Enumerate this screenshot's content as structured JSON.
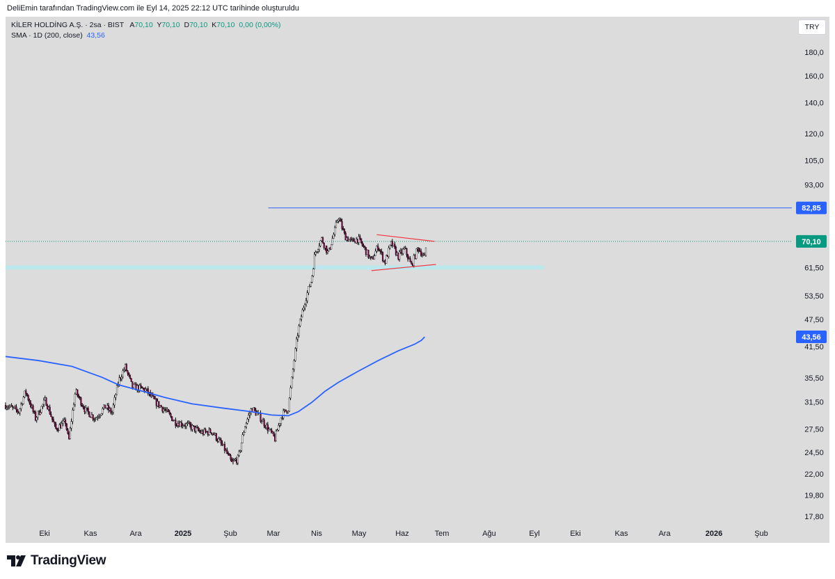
{
  "attribution": "DeliEmin tarafından TradingView.com ile Eyl 14, 2025 22:12 UTC tarihinde oluşturuldu",
  "legend": {
    "symbol": "KİLER HOLDİNG A.Ş. · 2sa · BIST",
    "ohlc_label_o": "A",
    "ohlc_value_o": "70,10",
    "ohlc_label_h": "Y",
    "ohlc_value_h": "70,10",
    "ohlc_label_l": "D",
    "ohlc_value_l": "70,10",
    "ohlc_label_c": "K",
    "ohlc_value_c": "70,10",
    "change": "0,00 (0,00%)",
    "sma_label": "SMA · 1D (200, close)",
    "sma_value": "43,56"
  },
  "currency_button": "TRY",
  "logo_text": "TradingView",
  "colors": {
    "background": "#dcdcdc",
    "candle_up": "#ffffff",
    "candle_down": "#880e4f",
    "wick": "#000000",
    "sma": "#2962ff",
    "resistance": "#2962ff",
    "triangle": "#f23645",
    "support_band": "#b2ebf2",
    "last_price": "#089981"
  },
  "chart_data": {
    "type": "candlestick",
    "scale": "log",
    "x_ticks": [
      {
        "label": "Eki",
        "bold": false
      },
      {
        "label": "Kas",
        "bold": false
      },
      {
        "label": "Ara",
        "bold": false
      },
      {
        "label": "2025",
        "bold": true
      },
      {
        "label": "Şub",
        "bold": false
      },
      {
        "label": "Mar",
        "bold": false
      },
      {
        "label": "Nis",
        "bold": false
      },
      {
        "label": "May",
        "bold": false
      },
      {
        "label": "Haz",
        "bold": false
      },
      {
        "label": "Tem",
        "bold": false
      },
      {
        "label": "Ağu",
        "bold": false
      },
      {
        "label": "Eyl",
        "bold": false
      },
      {
        "label": "Eki",
        "bold": false
      },
      {
        "label": "Kas",
        "bold": false
      },
      {
        "label": "Ara",
        "bold": false
      },
      {
        "label": "2026",
        "bold": true
      },
      {
        "label": "Şub",
        "bold": false
      }
    ],
    "y_ticks": [
      {
        "label": "180,0",
        "value": 180
      },
      {
        "label": "160,0",
        "value": 160
      },
      {
        "label": "140,0",
        "value": 140
      },
      {
        "label": "120,0",
        "value": 120
      },
      {
        "label": "105,0",
        "value": 105
      },
      {
        "label": "93,00",
        "value": 93
      },
      {
        "label": "61,50",
        "value": 61.5
      },
      {
        "label": "53,50",
        "value": 53.5
      },
      {
        "label": "47,50",
        "value": 47.5
      },
      {
        "label": "41,50",
        "value": 41.5
      },
      {
        "label": "35,50",
        "value": 35.5
      },
      {
        "label": "31,50",
        "value": 31.5
      },
      {
        "label": "27,50",
        "value": 27.5
      },
      {
        "label": "24,50",
        "value": 24.5
      },
      {
        "label": "22,00",
        "value": 22
      },
      {
        "label": "19,80",
        "value": 19.8
      },
      {
        "label": "17,80",
        "value": 17.8
      }
    ],
    "price_labels": [
      {
        "label": "82,85",
        "value": 82.85,
        "color": "#2962ff",
        "kind": "resistance"
      },
      {
        "label": "70,10",
        "value": 70.1,
        "color": "#089981",
        "kind": "last"
      },
      {
        "label": "43,56",
        "value": 43.56,
        "color": "#2962ff",
        "kind": "sma"
      }
    ],
    "price_path": [
      [
        0,
        31.0
      ],
      [
        2.0,
        30.0
      ],
      [
        3.0,
        33.2
      ],
      [
        4.5,
        29.0
      ],
      [
        6.0,
        31.8
      ],
      [
        7.5,
        27.5
      ],
      [
        9.0,
        28.5
      ],
      [
        9.5,
        25.8
      ],
      [
        10.5,
        33.2
      ],
      [
        12.0,
        30.2
      ],
      [
        13.5,
        29.0
      ],
      [
        15.0,
        30.8
      ],
      [
        16.0,
        29.8
      ],
      [
        17.0,
        35.0
      ],
      [
        18.0,
        37.5
      ],
      [
        19.0,
        34.0
      ],
      [
        21.0,
        33.5
      ],
      [
        22.5,
        31.5
      ],
      [
        24.0,
        30.2
      ],
      [
        25.5,
        28.5
      ],
      [
        27.5,
        28.0
      ],
      [
        29.5,
        27.0
      ],
      [
        31.0,
        27.2
      ],
      [
        33.0,
        24.8
      ],
      [
        34.0,
        23.2
      ],
      [
        35.0,
        23.8
      ],
      [
        36.0,
        28.0
      ],
      [
        37.0,
        30.5
      ],
      [
        38.0,
        29.5
      ],
      [
        39.5,
        27.5
      ],
      [
        40.5,
        26.2
      ],
      [
        41.5,
        29.5
      ],
      [
        42.5,
        30.5
      ],
      [
        43.0,
        35.0
      ],
      [
        44.0,
        45.0
      ],
      [
        45.0,
        52.0
      ],
      [
        46.0,
        58.0
      ],
      [
        46.5,
        66.0
      ],
      [
        47.5,
        71.0
      ],
      [
        48.5,
        66.0
      ],
      [
        49.5,
        74.0
      ],
      [
        50.0,
        79.5
      ],
      [
        51.0,
        72.0
      ],
      [
        52.0,
        70.0
      ],
      [
        53.0,
        71.0
      ],
      [
        54.0,
        67.5
      ],
      [
        55.0,
        63.5
      ],
      [
        56.0,
        68.5
      ],
      [
        57.0,
        63.0
      ],
      [
        58.0,
        69.5
      ],
      [
        59.0,
        65.0
      ],
      [
        60.0,
        67.5
      ],
      [
        61.0,
        62.0
      ],
      [
        62.0,
        68.0
      ],
      [
        63.0,
        64.5
      ],
      [
        63.3,
        70.1
      ]
    ],
    "sma_series": [
      [
        0,
        39.5
      ],
      [
        5.0,
        38.7
      ],
      [
        10.0,
        37.6
      ],
      [
        14.5,
        35.6
      ],
      [
        17.0,
        34.3
      ],
      [
        20.0,
        33.4
      ],
      [
        24.0,
        32.2
      ],
      [
        28.0,
        31.2
      ],
      [
        33.0,
        30.5
      ],
      [
        37.0,
        30.0
      ],
      [
        40.0,
        29.5
      ],
      [
        42.5,
        29.4
      ],
      [
        44.0,
        30.0
      ],
      [
        46.0,
        31.4
      ],
      [
        48.0,
        33.2
      ],
      [
        50.0,
        34.7
      ],
      [
        53.0,
        36.7
      ],
      [
        56.0,
        38.7
      ],
      [
        59.0,
        40.6
      ],
      [
        61.5,
        42.0
      ],
      [
        62.5,
        42.8
      ],
      [
        63.0,
        43.56
      ]
    ],
    "annotations": {
      "resistance_line": {
        "value": 82.85,
        "x_start": 39.5,
        "x_end": "right_edge"
      },
      "last_price_line": {
        "value": 70.1,
        "style": "dotted"
      },
      "support_zone": {
        "from": 60.9,
        "to": 62.2,
        "x_start": 0,
        "x_end": 81.0
      },
      "triangle": {
        "upper": {
          "x1": 55.8,
          "y1": 72.5,
          "x2": 64.5,
          "y2": 70.1
        },
        "lower": {
          "x1": 55.0,
          "y1": 60.6,
          "x2": 64.7,
          "y2": 62.5
        }
      }
    }
  }
}
